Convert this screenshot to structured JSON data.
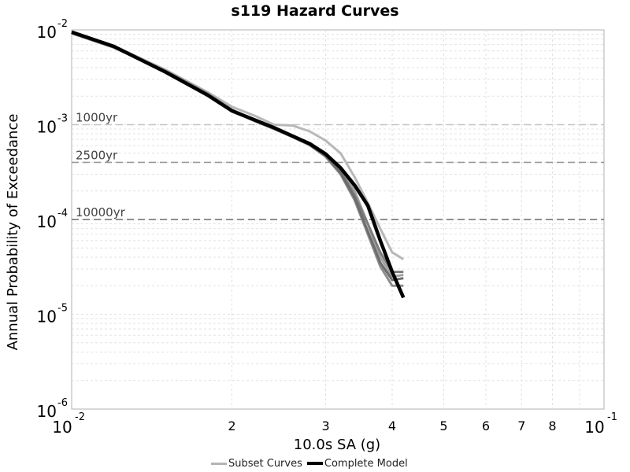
{
  "chart_data": {
    "type": "line",
    "title": "s119 Hazard Curves",
    "xlabel": "10.0s SA (g)",
    "ylabel": "Annual Probability of Exceedance",
    "x_scale": "log",
    "y_scale": "log",
    "xlim": [
      0.01,
      0.1
    ],
    "ylim": [
      1e-06,
      0.01
    ],
    "grid": true,
    "x_ticks": [
      {
        "value": 0.01,
        "label": "10",
        "exp": "-2"
      },
      {
        "value": 0.02,
        "label": "2"
      },
      {
        "value": 0.03,
        "label": "3"
      },
      {
        "value": 0.04,
        "label": "4"
      },
      {
        "value": 0.05,
        "label": "5"
      },
      {
        "value": 0.06,
        "label": "6"
      },
      {
        "value": 0.07,
        "label": "7"
      },
      {
        "value": 0.08,
        "label": "8"
      },
      {
        "value": 0.1,
        "label": "10",
        "exp": "-1"
      }
    ],
    "y_ticks": [
      {
        "value": 0.01,
        "label": "10",
        "exp": "-2"
      },
      {
        "value": 0.001,
        "label": "10",
        "exp": "-3"
      },
      {
        "value": 0.0001,
        "label": "10",
        "exp": "-4"
      },
      {
        "value": 1e-05,
        "label": "10",
        "exp": "-5"
      },
      {
        "value": 1e-06,
        "label": "10",
        "exp": "-6"
      }
    ],
    "reference_lines": [
      {
        "label": "1000yr",
        "y": 0.001,
        "color": "#c4c4c4"
      },
      {
        "label": "2500yr",
        "y": 0.0004,
        "color": "#9a9a9a"
      },
      {
        "label": "10000yr",
        "y": 0.0001,
        "color": "#6a6a6a"
      }
    ],
    "legend": {
      "placement": "bottom",
      "entries": [
        {
          "label": "Subset Curves",
          "color": "#b4b4b4"
        },
        {
          "label": "Complete Model",
          "color": "#000000"
        }
      ]
    },
    "subset_series": [
      {
        "color": "#b8b8b8",
        "points": [
          [
            0.01,
            0.0095
          ],
          [
            0.012,
            0.0068
          ],
          [
            0.015,
            0.0038
          ],
          [
            0.018,
            0.0022
          ],
          [
            0.02,
            0.00155
          ],
          [
            0.022,
            0.00125
          ],
          [
            0.024,
            0.001
          ],
          [
            0.026,
            0.00098
          ],
          [
            0.028,
            0.00085
          ],
          [
            0.03,
            0.00068
          ],
          [
            0.032,
            0.0005
          ],
          [
            0.034,
            0.00028
          ],
          [
            0.036,
            0.00015
          ],
          [
            0.038,
            8e-05
          ],
          [
            0.04,
            4.5e-05
          ],
          [
            0.042,
            3.8e-05
          ]
        ]
      },
      {
        "color": "#a2a2a2",
        "points": [
          [
            0.01,
            0.0093
          ],
          [
            0.012,
            0.0066
          ],
          [
            0.015,
            0.0037
          ],
          [
            0.018,
            0.00215
          ],
          [
            0.02,
            0.00145
          ],
          [
            0.022,
            0.00112
          ],
          [
            0.024,
            0.00092
          ],
          [
            0.026,
            0.00075
          ],
          [
            0.028,
            0.00063
          ],
          [
            0.03,
            0.0005
          ],
          [
            0.032,
            0.00035
          ],
          [
            0.034,
            0.0002
          ],
          [
            0.036,
            9e-05
          ],
          [
            0.038,
            4e-05
          ],
          [
            0.04,
            2.5e-05
          ],
          [
            0.042,
            2.6e-05
          ]
        ]
      },
      {
        "color": "#8c8c8c",
        "points": [
          [
            0.01,
            0.0092
          ],
          [
            0.012,
            0.0065
          ],
          [
            0.015,
            0.00365
          ],
          [
            0.018,
            0.0021
          ],
          [
            0.02,
            0.0014
          ],
          [
            0.022,
            0.0011
          ],
          [
            0.024,
            0.0009
          ],
          [
            0.026,
            0.00074
          ],
          [
            0.028,
            0.00061
          ],
          [
            0.03,
            0.00046
          ],
          [
            0.032,
            0.0003
          ],
          [
            0.034,
            0.00016
          ],
          [
            0.036,
            7e-05
          ],
          [
            0.038,
            3.2e-05
          ],
          [
            0.04,
            2e-05
          ],
          [
            0.042,
            2e-05
          ]
        ]
      },
      {
        "color": "#7c7c7c",
        "points": [
          [
            0.01,
            0.0094
          ],
          [
            0.012,
            0.0067
          ],
          [
            0.015,
            0.0037
          ],
          [
            0.018,
            0.00212
          ],
          [
            0.02,
            0.00142
          ],
          [
            0.022,
            0.00113
          ],
          [
            0.024,
            0.00093
          ],
          [
            0.026,
            0.00076
          ],
          [
            0.028,
            0.00062
          ],
          [
            0.03,
            0.00048
          ],
          [
            0.032,
            0.00032
          ],
          [
            0.034,
            0.00018
          ],
          [
            0.036,
            9e-05
          ],
          [
            0.038,
            4.5e-05
          ],
          [
            0.04,
            2.8e-05
          ],
          [
            0.042,
            2.8e-05
          ]
        ]
      },
      {
        "color": "#6c6c6c",
        "points": [
          [
            0.01,
            0.0093
          ],
          [
            0.012,
            0.0066
          ],
          [
            0.015,
            0.00362
          ],
          [
            0.018,
            0.00208
          ],
          [
            0.02,
            0.0014
          ],
          [
            0.022,
            0.00111
          ],
          [
            0.024,
            0.00091
          ],
          [
            0.026,
            0.00075
          ],
          [
            0.028,
            0.00061
          ],
          [
            0.03,
            0.00047
          ],
          [
            0.032,
            0.00031
          ],
          [
            0.034,
            0.00017
          ],
          [
            0.036,
            7.5e-05
          ],
          [
            0.038,
            3.5e-05
          ],
          [
            0.04,
            2.3e-05
          ],
          [
            0.042,
            2.4e-05
          ]
        ]
      }
    ],
    "series": [
      {
        "name": "Complete Model",
        "color": "#000000",
        "x": [
          0.01,
          0.012,
          0.015,
          0.018,
          0.02,
          0.022,
          0.024,
          0.026,
          0.028,
          0.03,
          0.032,
          0.034,
          0.036,
          0.038,
          0.04,
          0.042
        ],
        "y": [
          0.0095,
          0.0067,
          0.0036,
          0.00205,
          0.0014,
          0.00113,
          0.00093,
          0.00076,
          0.00063,
          0.00049,
          0.00035,
          0.00023,
          0.00014,
          6e-05,
          2.8e-05,
          1.5e-05
        ]
      }
    ]
  }
}
